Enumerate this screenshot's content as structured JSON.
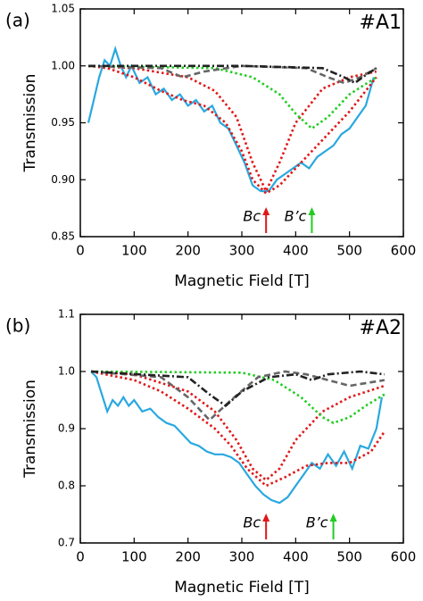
{
  "chart_data": [
    {
      "type": "line",
      "panel": "(a)",
      "tag": "#A1",
      "xlabel": "Magnetic Field [T]",
      "ylabel": "Transmission",
      "xlim": [
        0,
        600
      ],
      "xticks": [
        0,
        100,
        200,
        300,
        400,
        500,
        600
      ],
      "ylim": [
        0.85,
        1.05
      ],
      "yticks": [
        0.85,
        {
          "value": 0.9,
          "label": "0.90"
        },
        0.95,
        {
          "value": 1.0,
          "label": "1.00"
        },
        1.05
      ],
      "annotations": [
        {
          "text": "Bc",
          "x": 345,
          "color": "#e01818"
        },
        {
          "text": "B’c",
          "x": 430,
          "color": "#22cc22"
        }
      ],
      "series": [
        {
          "color": "#29a8e0",
          "linestyle": "solid",
          "x": [
            15,
            25,
            35,
            45,
            55,
            65,
            75,
            85,
            95,
            110,
            125,
            140,
            155,
            170,
            185,
            200,
            215,
            230,
            245,
            260,
            275,
            290,
            305,
            320,
            335,
            350,
            365,
            380,
            395,
            410,
            425,
            440,
            455,
            470,
            485,
            500,
            515,
            530,
            545
          ],
          "values": [
            0.95,
            0.97,
            0.99,
            1.005,
            1.0,
            1.015,
            1.0,
            0.99,
            1.0,
            0.985,
            0.99,
            0.975,
            0.98,
            0.97,
            0.975,
            0.965,
            0.97,
            0.96,
            0.965,
            0.95,
            0.945,
            0.93,
            0.915,
            0.895,
            0.89,
            0.89,
            0.9,
            0.905,
            0.91,
            0.915,
            0.91,
            0.92,
            0.925,
            0.93,
            0.94,
            0.945,
            0.955,
            0.965,
            0.99
          ]
        },
        {
          "color": "#e01818",
          "linestyle": "dotted",
          "x": [
            15,
            50,
            100,
            150,
            190,
            230,
            270,
            300,
            320,
            345,
            370,
            400,
            450,
            500,
            550
          ],
          "values": [
            1.0,
            0.998,
            0.99,
            0.978,
            0.97,
            0.965,
            0.95,
            0.925,
            0.9,
            0.888,
            0.895,
            0.91,
            0.935,
            0.96,
            0.99
          ]
        },
        {
          "color": "#e01818",
          "linestyle": "dotted",
          "x": [
            15,
            100,
            200,
            250,
            290,
            320,
            345,
            370,
            400,
            450,
            500,
            550
          ],
          "values": [
            1.0,
            0.998,
            0.99,
            0.978,
            0.955,
            0.915,
            0.89,
            0.915,
            0.95,
            0.98,
            0.99,
            0.995
          ]
        },
        {
          "color": "#22cc22",
          "linestyle": "dotted",
          "x": [
            15,
            250,
            320,
            370,
            400,
            430,
            460,
            500,
            550
          ],
          "values": [
            1.0,
            0.998,
            0.99,
            0.975,
            0.958,
            0.945,
            0.955,
            0.975,
            0.99
          ]
        },
        {
          "color": "#666666",
          "linestyle": "dashed",
          "x": [
            15,
            150,
            190,
            230,
            300,
            420,
            460,
            490,
            520,
            550
          ],
          "values": [
            1.0,
            0.998,
            0.99,
            0.995,
            1.0,
            0.998,
            0.99,
            0.985,
            0.99,
            0.998
          ]
        },
        {
          "color": "#222222",
          "linestyle": "dashdot",
          "x": [
            15,
            300,
            450,
            490,
            510,
            530,
            550
          ],
          "values": [
            1.0,
            1.0,
            0.998,
            0.99,
            0.985,
            0.992,
            0.998
          ]
        }
      ]
    },
    {
      "type": "line",
      "panel": "(b)",
      "tag": "#A2",
      "xlabel": "Magnetic Field [T]",
      "ylabel": "Transmission",
      "xlim": [
        0,
        600
      ],
      "xticks": [
        0,
        100,
        200,
        300,
        400,
        500,
        600
      ],
      "ylim": [
        0.7,
        1.1
      ],
      "yticks": [
        0.7,
        0.8,
        0.9,
        {
          "value": 1.0,
          "label": "1.0"
        },
        1.1
      ],
      "annotations": [
        {
          "text": "Bc",
          "x": 345,
          "color": "#e01818"
        },
        {
          "text": "B’c",
          "x": 470,
          "color": "#22cc22"
        }
      ],
      "series": [
        {
          "color": "#29a8e0",
          "linestyle": "solid",
          "x": [
            20,
            30,
            40,
            50,
            60,
            70,
            80,
            90,
            100,
            115,
            130,
            145,
            160,
            175,
            190,
            205,
            220,
            235,
            250,
            265,
            280,
            295,
            310,
            325,
            340,
            355,
            370,
            385,
            400,
            415,
            430,
            445,
            460,
            475,
            490,
            505,
            520,
            535,
            550,
            560
          ],
          "values": [
            1.0,
            0.99,
            0.96,
            0.93,
            0.95,
            0.94,
            0.955,
            0.94,
            0.95,
            0.93,
            0.935,
            0.92,
            0.91,
            0.905,
            0.89,
            0.875,
            0.87,
            0.86,
            0.855,
            0.855,
            0.85,
            0.84,
            0.82,
            0.8,
            0.785,
            0.775,
            0.77,
            0.78,
            0.8,
            0.82,
            0.84,
            0.83,
            0.855,
            0.835,
            0.86,
            0.83,
            0.87,
            0.865,
            0.9,
            0.955
          ]
        },
        {
          "color": "#e01818",
          "linestyle": "dotted",
          "x": [
            20,
            100,
            150,
            200,
            250,
            280,
            310,
            345,
            380,
            420,
            460,
            500,
            540,
            565
          ],
          "values": [
            1.0,
            0.985,
            0.965,
            0.935,
            0.9,
            0.87,
            0.83,
            0.8,
            0.815,
            0.835,
            0.84,
            0.84,
            0.86,
            0.895
          ]
        },
        {
          "color": "#e01818",
          "linestyle": "dotted",
          "x": [
            20,
            100,
            200,
            250,
            290,
            320,
            345,
            370,
            400,
            450,
            500,
            565
          ],
          "values": [
            1.0,
            0.995,
            0.965,
            0.93,
            0.88,
            0.83,
            0.81,
            0.83,
            0.88,
            0.93,
            0.955,
            0.975
          ]
        },
        {
          "color": "#22cc22",
          "linestyle": "dotted",
          "x": [
            20,
            300,
            360,
            410,
            450,
            470,
            500,
            530,
            565
          ],
          "values": [
            1.0,
            0.998,
            0.985,
            0.955,
            0.92,
            0.91,
            0.92,
            0.94,
            0.96
          ]
        },
        {
          "color": "#666666",
          "linestyle": "dashed",
          "x": [
            20,
            150,
            200,
            240,
            280,
            330,
            380,
            420,
            460,
            500,
            565
          ],
          "values": [
            1.0,
            0.99,
            0.955,
            0.915,
            0.95,
            0.99,
            1.0,
            0.995,
            0.985,
            0.975,
            0.985
          ]
        },
        {
          "color": "#222222",
          "linestyle": "dashdot",
          "x": [
            20,
            200,
            240,
            270,
            300,
            350,
            400,
            430,
            460,
            520,
            565
          ],
          "values": [
            1.0,
            0.99,
            0.96,
            0.94,
            0.965,
            0.99,
            0.995,
            0.985,
            0.995,
            1.0,
            0.995
          ]
        }
      ]
    }
  ]
}
